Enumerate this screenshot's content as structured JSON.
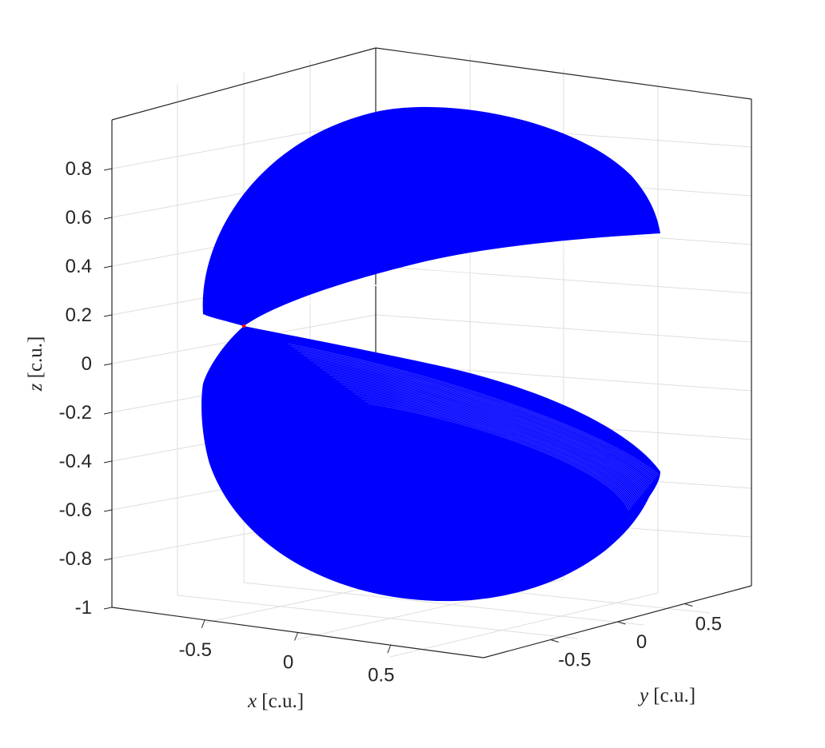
{
  "chart_data": {
    "type": "scatter",
    "subtype": "3d-surface-mesh",
    "title": "",
    "xlabel_var": "x",
    "xlabel_unit": "[c.u.]",
    "ylabel_var": "y",
    "ylabel_unit": "[c.u.]",
    "zlabel_var": "z",
    "zlabel_unit": "[c.u.]",
    "xlim": [
      -1,
      1
    ],
    "ylim": [
      -1,
      1
    ],
    "zlim": [
      -1,
      1
    ],
    "x_ticks": [
      "-0.5",
      "0",
      "0.5"
    ],
    "y_ticks": [
      "-0.5",
      "0",
      "0.5"
    ],
    "z_ticks": [
      "-1",
      "-0.8",
      "-0.6",
      "-0.4",
      "-0.2",
      "0",
      "0.2",
      "0.4",
      "0.6",
      "0.8"
    ],
    "grid": true,
    "series": [
      {
        "color": "#0000ff",
        "shape": "unit sphere with a wedge opening between the upper and lower halves, apex near (x≈-0.95, z≈0.15)",
        "z_range": [
          -1,
          1
        ]
      }
    ],
    "apex_marker_color": "#ff0000",
    "grid_color": "#dedede",
    "axis_color": "#262626"
  }
}
